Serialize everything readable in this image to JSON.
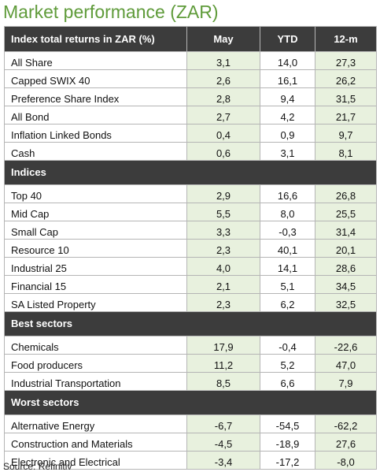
{
  "title": "Market performance (ZAR)",
  "table": {
    "header": [
      "Index total returns in ZAR (%)",
      "May",
      "YTD",
      "12-m"
    ],
    "groups": [
      {
        "rows": [
          [
            "All Share",
            "3,1",
            "14,0",
            "27,3"
          ],
          [
            "Capped SWIX 40",
            "2,6",
            "16,1",
            "26,2"
          ],
          [
            "Preference Share Index",
            "2,8",
            "9,4",
            "31,5"
          ],
          [
            "All Bond",
            "2,7",
            "4,2",
            "21,7"
          ],
          [
            "Inflation Linked Bonds",
            "0,4",
            "0,9",
            "9,7"
          ],
          [
            "Cash",
            "0,6",
            "3,1",
            "8,1"
          ]
        ]
      },
      {
        "title": "Indices",
        "rows": [
          [
            "Top 40",
            "2,9",
            "16,6",
            "26,8"
          ],
          [
            "Mid Cap",
            "5,5",
            "8,0",
            "25,5"
          ],
          [
            "Small Cap",
            "3,3",
            "-0,3",
            "31,4"
          ],
          [
            "Resource 10",
            "2,3",
            "40,1",
            "20,1"
          ],
          [
            "Industrial 25",
            "4,0",
            "14,1",
            "28,6"
          ],
          [
            "Financial 15",
            "2,1",
            "5,1",
            "34,5"
          ],
          [
            "SA Listed Property",
            "2,3",
            "6,2",
            "32,5"
          ]
        ]
      },
      {
        "title": "Best sectors",
        "rows": [
          [
            "Chemicals",
            "17,9",
            "-0,4",
            "-22,6"
          ],
          [
            "Food producers",
            "11,2",
            "5,2",
            "47,0"
          ],
          [
            "Industrial Transportation",
            "8,5",
            "6,6",
            "7,9"
          ]
        ]
      },
      {
        "title": "Worst sectors",
        "rows": [
          [
            "Alternative Energy",
            "-6,7",
            "-54,5",
            "-62,2"
          ],
          [
            "Construction and Materials",
            "-4,5",
            "-18,9",
            "27,6"
          ],
          [
            "Electronic and Electrical",
            "-3,4",
            "-17,2",
            "-8,0"
          ]
        ]
      }
    ]
  },
  "source": "Source: Refinitiv"
}
